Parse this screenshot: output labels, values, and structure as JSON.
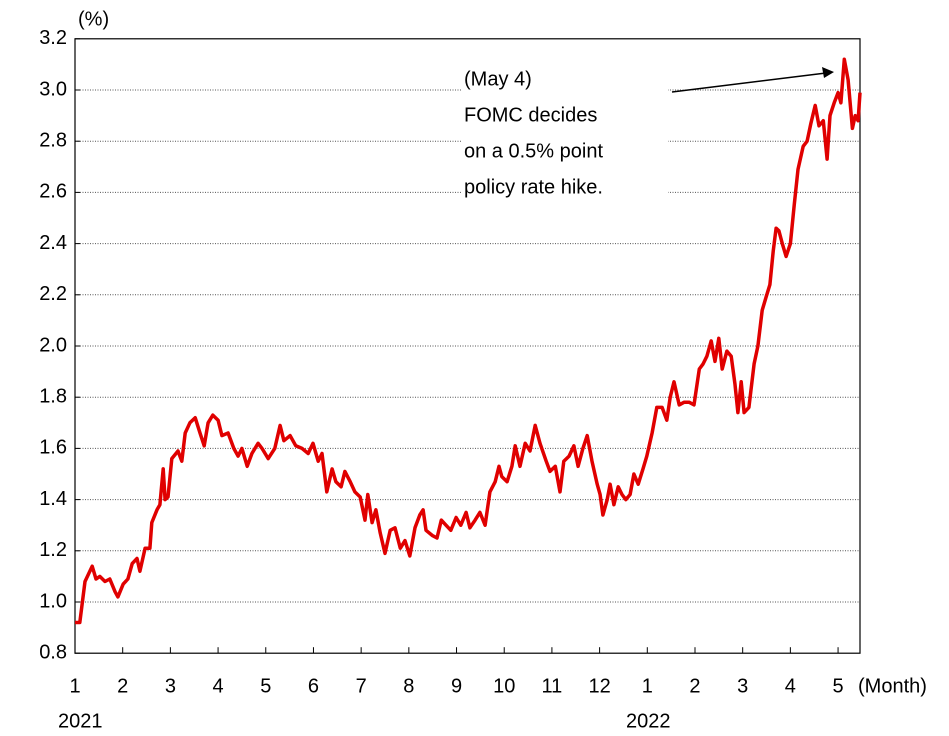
{
  "chart_data": {
    "type": "line",
    "y_label": "(%)",
    "x_label": "(Month)",
    "year_labels": [
      "2021",
      "2022"
    ],
    "annotation": [
      "(May 4)",
      "FOMC decides",
      "on a 0.5% point",
      "policy rate hike."
    ],
    "color": "#e00000",
    "grid": true,
    "ylim": [
      0.8,
      3.2
    ],
    "yticks": [
      0.8,
      {
        "value": 1,
        "label": "1.0"
      },
      1.2,
      1.4,
      1.6,
      1.8,
      {
        "value": 2,
        "label": "2.0"
      },
      2.2,
      2.4,
      2.6,
      2.8,
      {
        "value": 3,
        "label": "3.0"
      },
      3.2
    ],
    "xlim": [
      0,
      16.46
    ],
    "xticks": [
      {
        "value": 0,
        "label": "1"
      },
      {
        "value": 1,
        "label": "2"
      },
      {
        "value": 2,
        "label": "3"
      },
      {
        "value": 3,
        "label": "4"
      },
      {
        "value": 4,
        "label": "5"
      },
      {
        "value": 5,
        "label": "6"
      },
      {
        "value": 6,
        "label": "7"
      },
      {
        "value": 7,
        "label": "8"
      },
      {
        "value": 8,
        "label": "9"
      },
      {
        "value": 9,
        "label": "10"
      },
      {
        "value": 10,
        "label": "11"
      },
      {
        "value": 11,
        "label": "12"
      },
      {
        "value": 12,
        "label": "1"
      },
      {
        "value": 13,
        "label": "2"
      },
      {
        "value": 14,
        "label": "3"
      },
      {
        "value": 15,
        "label": "4"
      },
      {
        "value": 16,
        "label": "5"
      }
    ],
    "x": [
      0,
      0.1,
      0.21,
      0.36,
      0.44,
      0.52,
      0.63,
      0.73,
      0.84,
      0.9,
      1.01,
      1.11,
      1.2,
      1.3,
      1.36,
      1.47,
      1.57,
      1.61,
      1.72,
      1.78,
      1.85,
      1.89,
      1.95,
      2.03,
      2.16,
      2.24,
      2.31,
      2.41,
      2.52,
      2.62,
      2.71,
      2.79,
      2.89,
      3.0,
      3.08,
      3.21,
      3.33,
      3.42,
      3.5,
      3.61,
      3.71,
      3.84,
      3.92,
      4.05,
      4.19,
      4.3,
      4.38,
      4.51,
      4.63,
      4.76,
      4.89,
      4.99,
      5.1,
      5.18,
      5.28,
      5.39,
      5.47,
      5.58,
      5.66,
      5.77,
      5.87,
      5.98,
      6.08,
      6.14,
      6.23,
      6.31,
      6.4,
      6.5,
      6.61,
      6.71,
      6.82,
      6.92,
      7.02,
      7.13,
      7.23,
      7.3,
      7.36,
      7.49,
      7.59,
      7.68,
      7.78,
      7.88,
      7.99,
      8.09,
      8.2,
      8.28,
      8.39,
      8.49,
      8.6,
      8.7,
      8.81,
      8.89,
      8.95,
      9.06,
      9.16,
      9.23,
      9.33,
      9.44,
      9.54,
      9.65,
      9.75,
      9.88,
      9.96,
      10.07,
      10.17,
      10.25,
      10.36,
      10.46,
      10.55,
      10.65,
      10.74,
      10.84,
      10.95,
      11.01,
      11.07,
      11.16,
      11.22,
      11.3,
      11.39,
      11.47,
      11.55,
      11.64,
      11.72,
      11.81,
      11.91,
      11.99,
      12.1,
      12.2,
      12.31,
      12.41,
      12.48,
      12.56,
      12.67,
      12.77,
      12.88,
      12.98,
      13.09,
      13.17,
      13.25,
      13.34,
      13.42,
      13.5,
      13.57,
      13.67,
      13.76,
      13.84,
      13.9,
      13.97,
      14.03,
      14.13,
      14.24,
      14.32,
      14.41,
      14.49,
      14.57,
      14.64,
      14.7,
      14.76,
      14.83,
      14.91,
      15.0,
      15.08,
      15.16,
      15.27,
      15.35,
      15.43,
      15.52,
      15.6,
      15.69,
      15.77,
      15.83,
      15.92,
      16.0,
      16.06,
      16.13,
      16.21,
      16.3,
      16.36,
      16.42,
      16.46
    ],
    "values": [
      0.92,
      0.92,
      1.08,
      1.14,
      1.09,
      1.1,
      1.08,
      1.09,
      1.04,
      1.02,
      1.07,
      1.09,
      1.15,
      1.17,
      1.12,
      1.21,
      1.21,
      1.31,
      1.36,
      1.38,
      1.52,
      1.4,
      1.41,
      1.56,
      1.59,
      1.55,
      1.66,
      1.7,
      1.72,
      1.66,
      1.61,
      1.7,
      1.73,
      1.71,
      1.65,
      1.66,
      1.6,
      1.57,
      1.6,
      1.53,
      1.58,
      1.62,
      1.6,
      1.56,
      1.6,
      1.69,
      1.63,
      1.65,
      1.61,
      1.6,
      1.58,
      1.62,
      1.55,
      1.58,
      1.43,
      1.52,
      1.47,
      1.45,
      1.51,
      1.47,
      1.43,
      1.41,
      1.32,
      1.42,
      1.31,
      1.36,
      1.27,
      1.19,
      1.28,
      1.29,
      1.21,
      1.24,
      1.18,
      1.29,
      1.34,
      1.36,
      1.28,
      1.26,
      1.25,
      1.32,
      1.3,
      1.28,
      1.33,
      1.3,
      1.35,
      1.29,
      1.32,
      1.35,
      1.3,
      1.43,
      1.47,
      1.53,
      1.49,
      1.47,
      1.53,
      1.61,
      1.53,
      1.62,
      1.59,
      1.69,
      1.62,
      1.55,
      1.51,
      1.53,
      1.43,
      1.55,
      1.57,
      1.61,
      1.53,
      1.6,
      1.65,
      1.55,
      1.46,
      1.42,
      1.34,
      1.4,
      1.46,
      1.38,
      1.45,
      1.42,
      1.4,
      1.42,
      1.5,
      1.46,
      1.52,
      1.57,
      1.66,
      1.76,
      1.76,
      1.71,
      1.8,
      1.86,
      1.77,
      1.78,
      1.78,
      1.77,
      1.91,
      1.93,
      1.96,
      2.02,
      1.94,
      2.03,
      1.91,
      1.98,
      1.96,
      1.85,
      1.74,
      1.86,
      1.74,
      1.76,
      1.93,
      2.0,
      2.14,
      2.19,
      2.24,
      2.37,
      2.46,
      2.45,
      2.4,
      2.35,
      2.4,
      2.55,
      2.69,
      2.78,
      2.8,
      2.87,
      2.94,
      2.86,
      2.88,
      2.73,
      2.9,
      2.95,
      2.99,
      2.95,
      3.12,
      3.04,
      2.85,
      2.9,
      2.88,
      2.99
    ]
  }
}
